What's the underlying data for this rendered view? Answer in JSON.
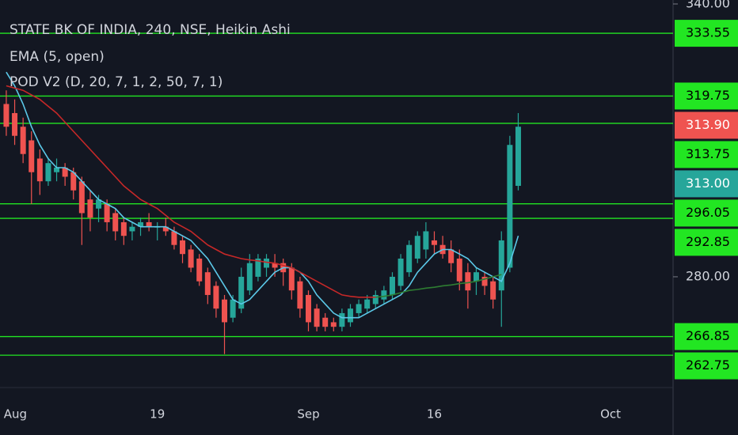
{
  "chart_data": {
    "type": "candlestick",
    "title": "STATE BK OF INDIA, 240, NSE, Heikin Ashi",
    "indicators": [
      "EMA (5, open)",
      "POD V2 (D, 20, 7, 1, 2, 50, 7, 1)"
    ],
    "up_color": "#26a69a",
    "down_color": "#ef5350",
    "level_color": "#22e622",
    "xlim": [
      -0.75,
      79.45
    ],
    "xticks": [
      {
        "value": -0.3,
        "label": "Aug"
      },
      {
        "value": 18,
        "label": "19"
      },
      {
        "value": 36,
        "label": "Sep"
      },
      {
        "value": 51,
        "label": "16"
      },
      {
        "value": 72,
        "label": "Oct"
      }
    ],
    "ylim": [
      253.9,
      340.87
    ],
    "yticks": [
      {
        "value": 340,
        "label": "340.00"
      },
      {
        "value": 280,
        "label": "280.00"
      }
    ],
    "levels": [
      333.55,
      319.75,
      313.75,
      296.05,
      292.85,
      266.85,
      262.75
    ],
    "price_tags": [
      {
        "value": 313.9,
        "label": "313.90",
        "color": "#ef5350"
      },
      {
        "value": 313.0,
        "label": "313.00",
        "color": "#26a69a"
      }
    ],
    "ohlc": [
      [
        318,
        321,
        311,
        313
      ],
      [
        316,
        319,
        309,
        311
      ],
      [
        313,
        315,
        305,
        307
      ],
      [
        310,
        312,
        296,
        303
      ],
      [
        306,
        308,
        298,
        301
      ],
      [
        301,
        306,
        300,
        305
      ],
      [
        303,
        306,
        301,
        304
      ],
      [
        304,
        305,
        300,
        302
      ],
      [
        303,
        304,
        297,
        299
      ],
      [
        301,
        302,
        287,
        294
      ],
      [
        297,
        299,
        290,
        293
      ],
      [
        295,
        298,
        292,
        297
      ],
      [
        296,
        297,
        290,
        292
      ],
      [
        294,
        295,
        288,
        290
      ],
      [
        292,
        293,
        287,
        289
      ],
      [
        290,
        292,
        288,
        291
      ],
      [
        291,
        293,
        289,
        292
      ],
      [
        292,
        294,
        290,
        291
      ],
      [
        291,
        292,
        288,
        291
      ],
      [
        291,
        293,
        289,
        290
      ],
      [
        290,
        291,
        286,
        287
      ],
      [
        288,
        289,
        283,
        285
      ],
      [
        286,
        287,
        281,
        282
      ],
      [
        284,
        285,
        278,
        279
      ],
      [
        281,
        282,
        274,
        276
      ],
      [
        278,
        279,
        271,
        273
      ],
      [
        275,
        276,
        263,
        270
      ],
      [
        271,
        276,
        270,
        275
      ],
      [
        273,
        282,
        272,
        280
      ],
      [
        277,
        285,
        276,
        283
      ],
      [
        280,
        285,
        279,
        284
      ],
      [
        282,
        285,
        280,
        284
      ],
      [
        283,
        285,
        280,
        282
      ],
      [
        283,
        284,
        278,
        281
      ],
      [
        282,
        283,
        275,
        277
      ],
      [
        279,
        280,
        271,
        273
      ],
      [
        276,
        277,
        268,
        270
      ],
      [
        273,
        274,
        268,
        269
      ],
      [
        271,
        272,
        268,
        269
      ],
      [
        270,
        271,
        268,
        269
      ],
      [
        269,
        273,
        268,
        272
      ],
      [
        270,
        274,
        269,
        273
      ],
      [
        272,
        275,
        271,
        274
      ],
      [
        273,
        276,
        272,
        275
      ],
      [
        274,
        277,
        273,
        276
      ],
      [
        275,
        278,
        274,
        277
      ],
      [
        276,
        281,
        275,
        280
      ],
      [
        278,
        285,
        277,
        284
      ],
      [
        281,
        288,
        280,
        287
      ],
      [
        284,
        290,
        283,
        289
      ],
      [
        286,
        292,
        284,
        290
      ],
      [
        288,
        290,
        285,
        287
      ],
      [
        287,
        289,
        284,
        285
      ],
      [
        286,
        288,
        281,
        283
      ],
      [
        284,
        286,
        277,
        279
      ],
      [
        281,
        283,
        273,
        277
      ],
      [
        279,
        282,
        276,
        281
      ],
      [
        280,
        281,
        276,
        278
      ],
      [
        279,
        280,
        273,
        275
      ],
      [
        277,
        290,
        269,
        288
      ],
      [
        282,
        311,
        281,
        309
      ],
      [
        300,
        316,
        299,
        313
      ]
    ],
    "series": [
      {
        "name": "EMA (5, open)",
        "color": "#5bc8e8",
        "values": [
          325,
          322,
          318,
          313,
          309,
          306,
          304,
          304,
          303,
          301,
          299,
          297,
          296,
          295,
          293,
          292,
          291,
          291,
          291,
          291,
          290,
          289,
          288,
          286,
          284,
          281,
          278,
          275,
          274,
          275,
          277,
          279,
          281,
          282,
          282,
          281,
          279,
          276,
          274,
          272,
          271,
          271,
          271,
          272,
          273,
          274,
          275,
          276,
          278,
          281,
          283,
          285,
          286,
          286,
          285,
          284,
          282,
          281,
          280,
          279,
          283,
          289
        ]
      },
      {
        "color": "#c62828",
        "values": [
          322,
          321.5,
          321,
          320,
          319,
          317.5,
          316,
          314,
          312,
          310,
          308,
          306,
          304,
          302,
          300,
          298.5,
          297,
          296,
          295,
          293.5,
          292,
          291,
          290,
          288.5,
          287,
          286,
          285,
          284.5,
          284,
          283.7,
          283.5,
          283.2,
          283,
          282.5,
          282,
          281,
          280,
          279,
          278,
          277,
          276,
          275.7,
          275.5,
          275.5,
          275.5,
          null,
          null,
          null,
          null,
          null,
          null,
          null,
          null,
          null,
          null,
          null,
          null,
          null,
          null,
          null,
          null,
          null
        ]
      },
      {
        "color": "#2e7d32",
        "values": [
          null,
          null,
          null,
          null,
          null,
          null,
          null,
          null,
          null,
          null,
          null,
          null,
          null,
          null,
          null,
          null,
          null,
          null,
          null,
          null,
          null,
          null,
          null,
          null,
          null,
          null,
          null,
          null,
          null,
          null,
          null,
          null,
          null,
          null,
          null,
          null,
          null,
          null,
          null,
          null,
          null,
          null,
          null,
          null,
          275.5,
          275.7,
          276,
          276.5,
          277,
          277.2,
          277.5,
          277.7,
          278,
          278.2,
          278.5,
          278.7,
          279,
          279.5,
          280,
          280.5,
          null,
          null
        ]
      }
    ]
  }
}
